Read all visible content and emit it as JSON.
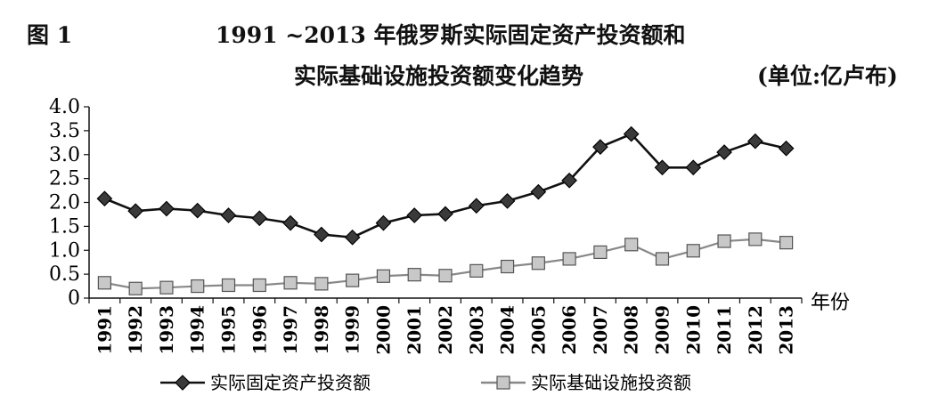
{
  "header": {
    "figure_label": "图 1",
    "title_line1": "1991 ~2013 年俄罗斯实际固定资产投资额和",
    "title_line2": "实际基础设施投资额变化趋势",
    "unit": "(单位:亿卢布)"
  },
  "chart_data": {
    "type": "line",
    "title": "1991 ~2013 年俄罗斯实际固定资产投资额和实际基础设施投资额变化趋势",
    "xlabel": "年份",
    "ylabel": "",
    "ylim": [
      0,
      4
    ],
    "yticks": [
      "0",
      "0.5",
      "1.0",
      "1.5",
      "2.0",
      "2.5",
      "3.0",
      "3.5",
      "4.0"
    ],
    "ytick_values": [
      0,
      0.5,
      1.0,
      1.5,
      2.0,
      2.5,
      3.0,
      3.5,
      4.0
    ],
    "categories": [
      "1991",
      "1992",
      "1993",
      "1994",
      "1995",
      "1996",
      "1997",
      "1998",
      "1999",
      "2000",
      "2001",
      "2002",
      "2003",
      "2004",
      "2005",
      "2006",
      "2007",
      "2008",
      "2009",
      "2010",
      "2011",
      "2012",
      "2013"
    ],
    "series": [
      {
        "name": "实际固定资产投资额",
        "marker": "diamond",
        "color": "#111111",
        "values": [
          2.08,
          1.82,
          1.87,
          1.83,
          1.73,
          1.67,
          1.57,
          1.33,
          1.27,
          1.57,
          1.73,
          1.76,
          1.93,
          2.03,
          2.22,
          2.46,
          3.16,
          3.43,
          2.73,
          2.73,
          3.05,
          3.28,
          3.13
        ]
      },
      {
        "name": "实际基础设施投资额",
        "marker": "square",
        "color": "#888888",
        "values": [
          0.32,
          0.2,
          0.22,
          0.25,
          0.27,
          0.27,
          0.32,
          0.3,
          0.37,
          0.46,
          0.49,
          0.47,
          0.57,
          0.66,
          0.73,
          0.82,
          0.96,
          1.12,
          0.82,
          0.99,
          1.19,
          1.23,
          1.16
        ]
      }
    ],
    "grid": false,
    "legend_position": "bottom"
  }
}
